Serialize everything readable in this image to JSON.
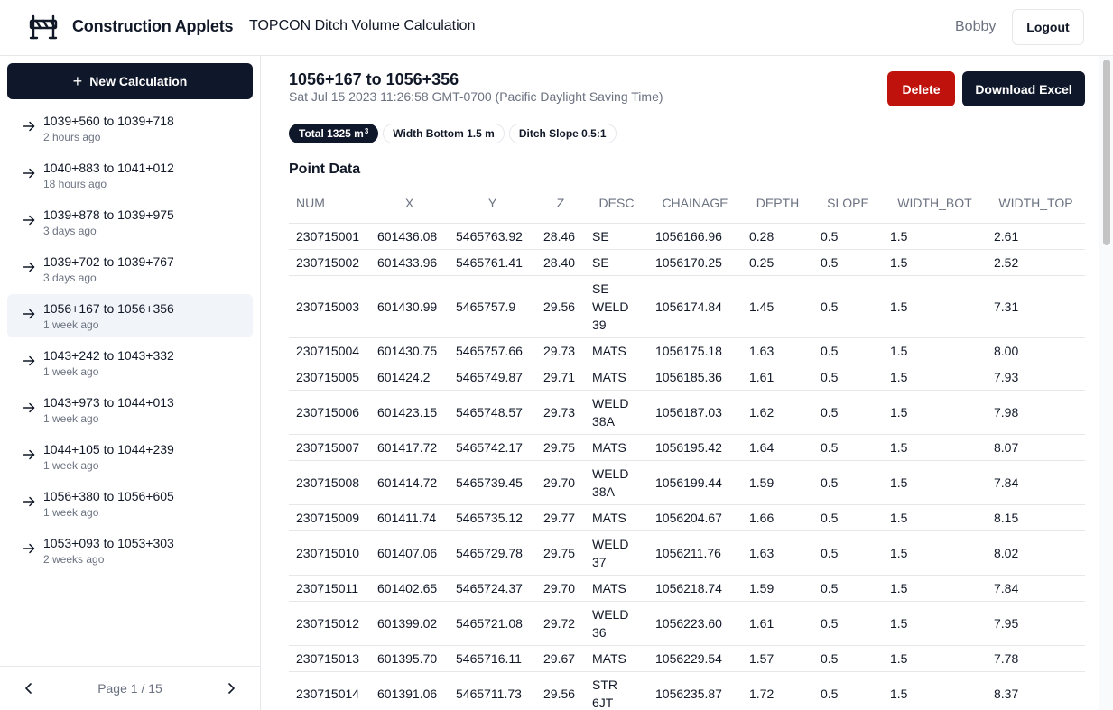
{
  "header": {
    "app_name": "Construction Applets",
    "subtitle": "TOPCON Ditch Volume Calculation",
    "user": "Bobby",
    "logout_label": "Logout"
  },
  "sidebar": {
    "new_label": "New Calculation",
    "items": [
      {
        "title": "1039+560 to 1039+718",
        "time": "2 hours ago"
      },
      {
        "title": "1040+883 to 1041+012",
        "time": "18 hours ago"
      },
      {
        "title": "1039+878 to 1039+975",
        "time": "3 days ago"
      },
      {
        "title": "1039+702 to 1039+767",
        "time": "3 days ago"
      },
      {
        "title": "1056+167 to 1056+356",
        "time": "1 week ago"
      },
      {
        "title": "1043+242 to 1043+332",
        "time": "1 week ago"
      },
      {
        "title": "1043+973 to 1044+013",
        "time": "1 week ago"
      },
      {
        "title": "1044+105 to 1044+239",
        "time": "1 week ago"
      },
      {
        "title": "1056+380 to 1056+605",
        "time": "1 week ago"
      },
      {
        "title": "1053+093 to 1053+303",
        "time": "2 weeks ago"
      }
    ],
    "active_index": 4,
    "pager_label": "Page 1 / 15"
  },
  "main": {
    "title": "1056+167 to 1056+356",
    "date": "Sat Jul 15 2023 11:26:58 GMT-0700 (Pacific Daylight Saving Time)",
    "delete_label": "Delete",
    "download_label": "Download Excel",
    "badges": {
      "total_prefix": "Total 1325 m",
      "total_sup": "3",
      "width_bottom": "Width Bottom 1.5 m",
      "ditch_slope": "Ditch Slope 0.5:1"
    },
    "section_title": "Point Data",
    "table": {
      "columns": [
        "NUM",
        "X",
        "Y",
        "Z",
        "DESC",
        "CHAINAGE",
        "DEPTH",
        "SLOPE",
        "WIDTH_BOT",
        "WIDTH_TOP"
      ],
      "rows": [
        [
          "230715001",
          "601436.08",
          "5465763.92",
          "28.46",
          "SE",
          "1056166.96",
          "0.28",
          "0.5",
          "1.5",
          "2.61"
        ],
        [
          "230715002",
          "601433.96",
          "5465761.41",
          "28.40",
          "SE",
          "1056170.25",
          "0.25",
          "0.5",
          "1.5",
          "2.52"
        ],
        [
          "230715003",
          "601430.99",
          "5465757.9",
          "29.56",
          "SE WELD 39",
          "1056174.84",
          "1.45",
          "0.5",
          "1.5",
          "7.31"
        ],
        [
          "230715004",
          "601430.75",
          "5465757.66",
          "29.73",
          "MATS",
          "1056175.18",
          "1.63",
          "0.5",
          "1.5",
          "8.00"
        ],
        [
          "230715005",
          "601424.2",
          "5465749.87",
          "29.71",
          "MATS",
          "1056185.36",
          "1.61",
          "0.5",
          "1.5",
          "7.93"
        ],
        [
          "230715006",
          "601423.15",
          "5465748.57",
          "29.73",
          "WELD 38A",
          "1056187.03",
          "1.62",
          "0.5",
          "1.5",
          "7.98"
        ],
        [
          "230715007",
          "601417.72",
          "5465742.17",
          "29.75",
          "MATS",
          "1056195.42",
          "1.64",
          "0.5",
          "1.5",
          "8.07"
        ],
        [
          "230715008",
          "601414.72",
          "5465739.45",
          "29.70",
          "WELD 38A",
          "1056199.44",
          "1.59",
          "0.5",
          "1.5",
          "7.84"
        ],
        [
          "230715009",
          "601411.74",
          "5465735.12",
          "29.77",
          "MATS",
          "1056204.67",
          "1.66",
          "0.5",
          "1.5",
          "8.15"
        ],
        [
          "230715010",
          "601407.06",
          "5465729.78",
          "29.75",
          "WELD 37",
          "1056211.76",
          "1.63",
          "0.5",
          "1.5",
          "8.02"
        ],
        [
          "230715011",
          "601402.65",
          "5465724.37",
          "29.70",
          "MATS",
          "1056218.74",
          "1.59",
          "0.5",
          "1.5",
          "7.84"
        ],
        [
          "230715012",
          "601399.02",
          "5465721.08",
          "29.72",
          "WELD 36",
          "1056223.60",
          "1.61",
          "0.5",
          "1.5",
          "7.95"
        ],
        [
          "230715013",
          "601395.70",
          "5465716.11",
          "29.67",
          "MATS",
          "1056229.54",
          "1.57",
          "0.5",
          "1.5",
          "7.78"
        ],
        [
          "230715014",
          "601391.06",
          "5465711.73",
          "29.56",
          "STR 6JT",
          "1056235.87",
          "1.72",
          "0.5",
          "1.5",
          "8.37"
        ]
      ]
    }
  },
  "colors": {
    "primary": "#0f172a",
    "danger": "#c0120c",
    "muted": "#6b7280",
    "border": "#e5e7eb",
    "active_bg": "#f1f5f9"
  },
  "icons": {
    "logo": "road-barrier-icon",
    "list_item": "arrow-right-icon",
    "prev": "chevron-left-icon",
    "next": "chevron-right-icon",
    "new": "plus-icon"
  }
}
